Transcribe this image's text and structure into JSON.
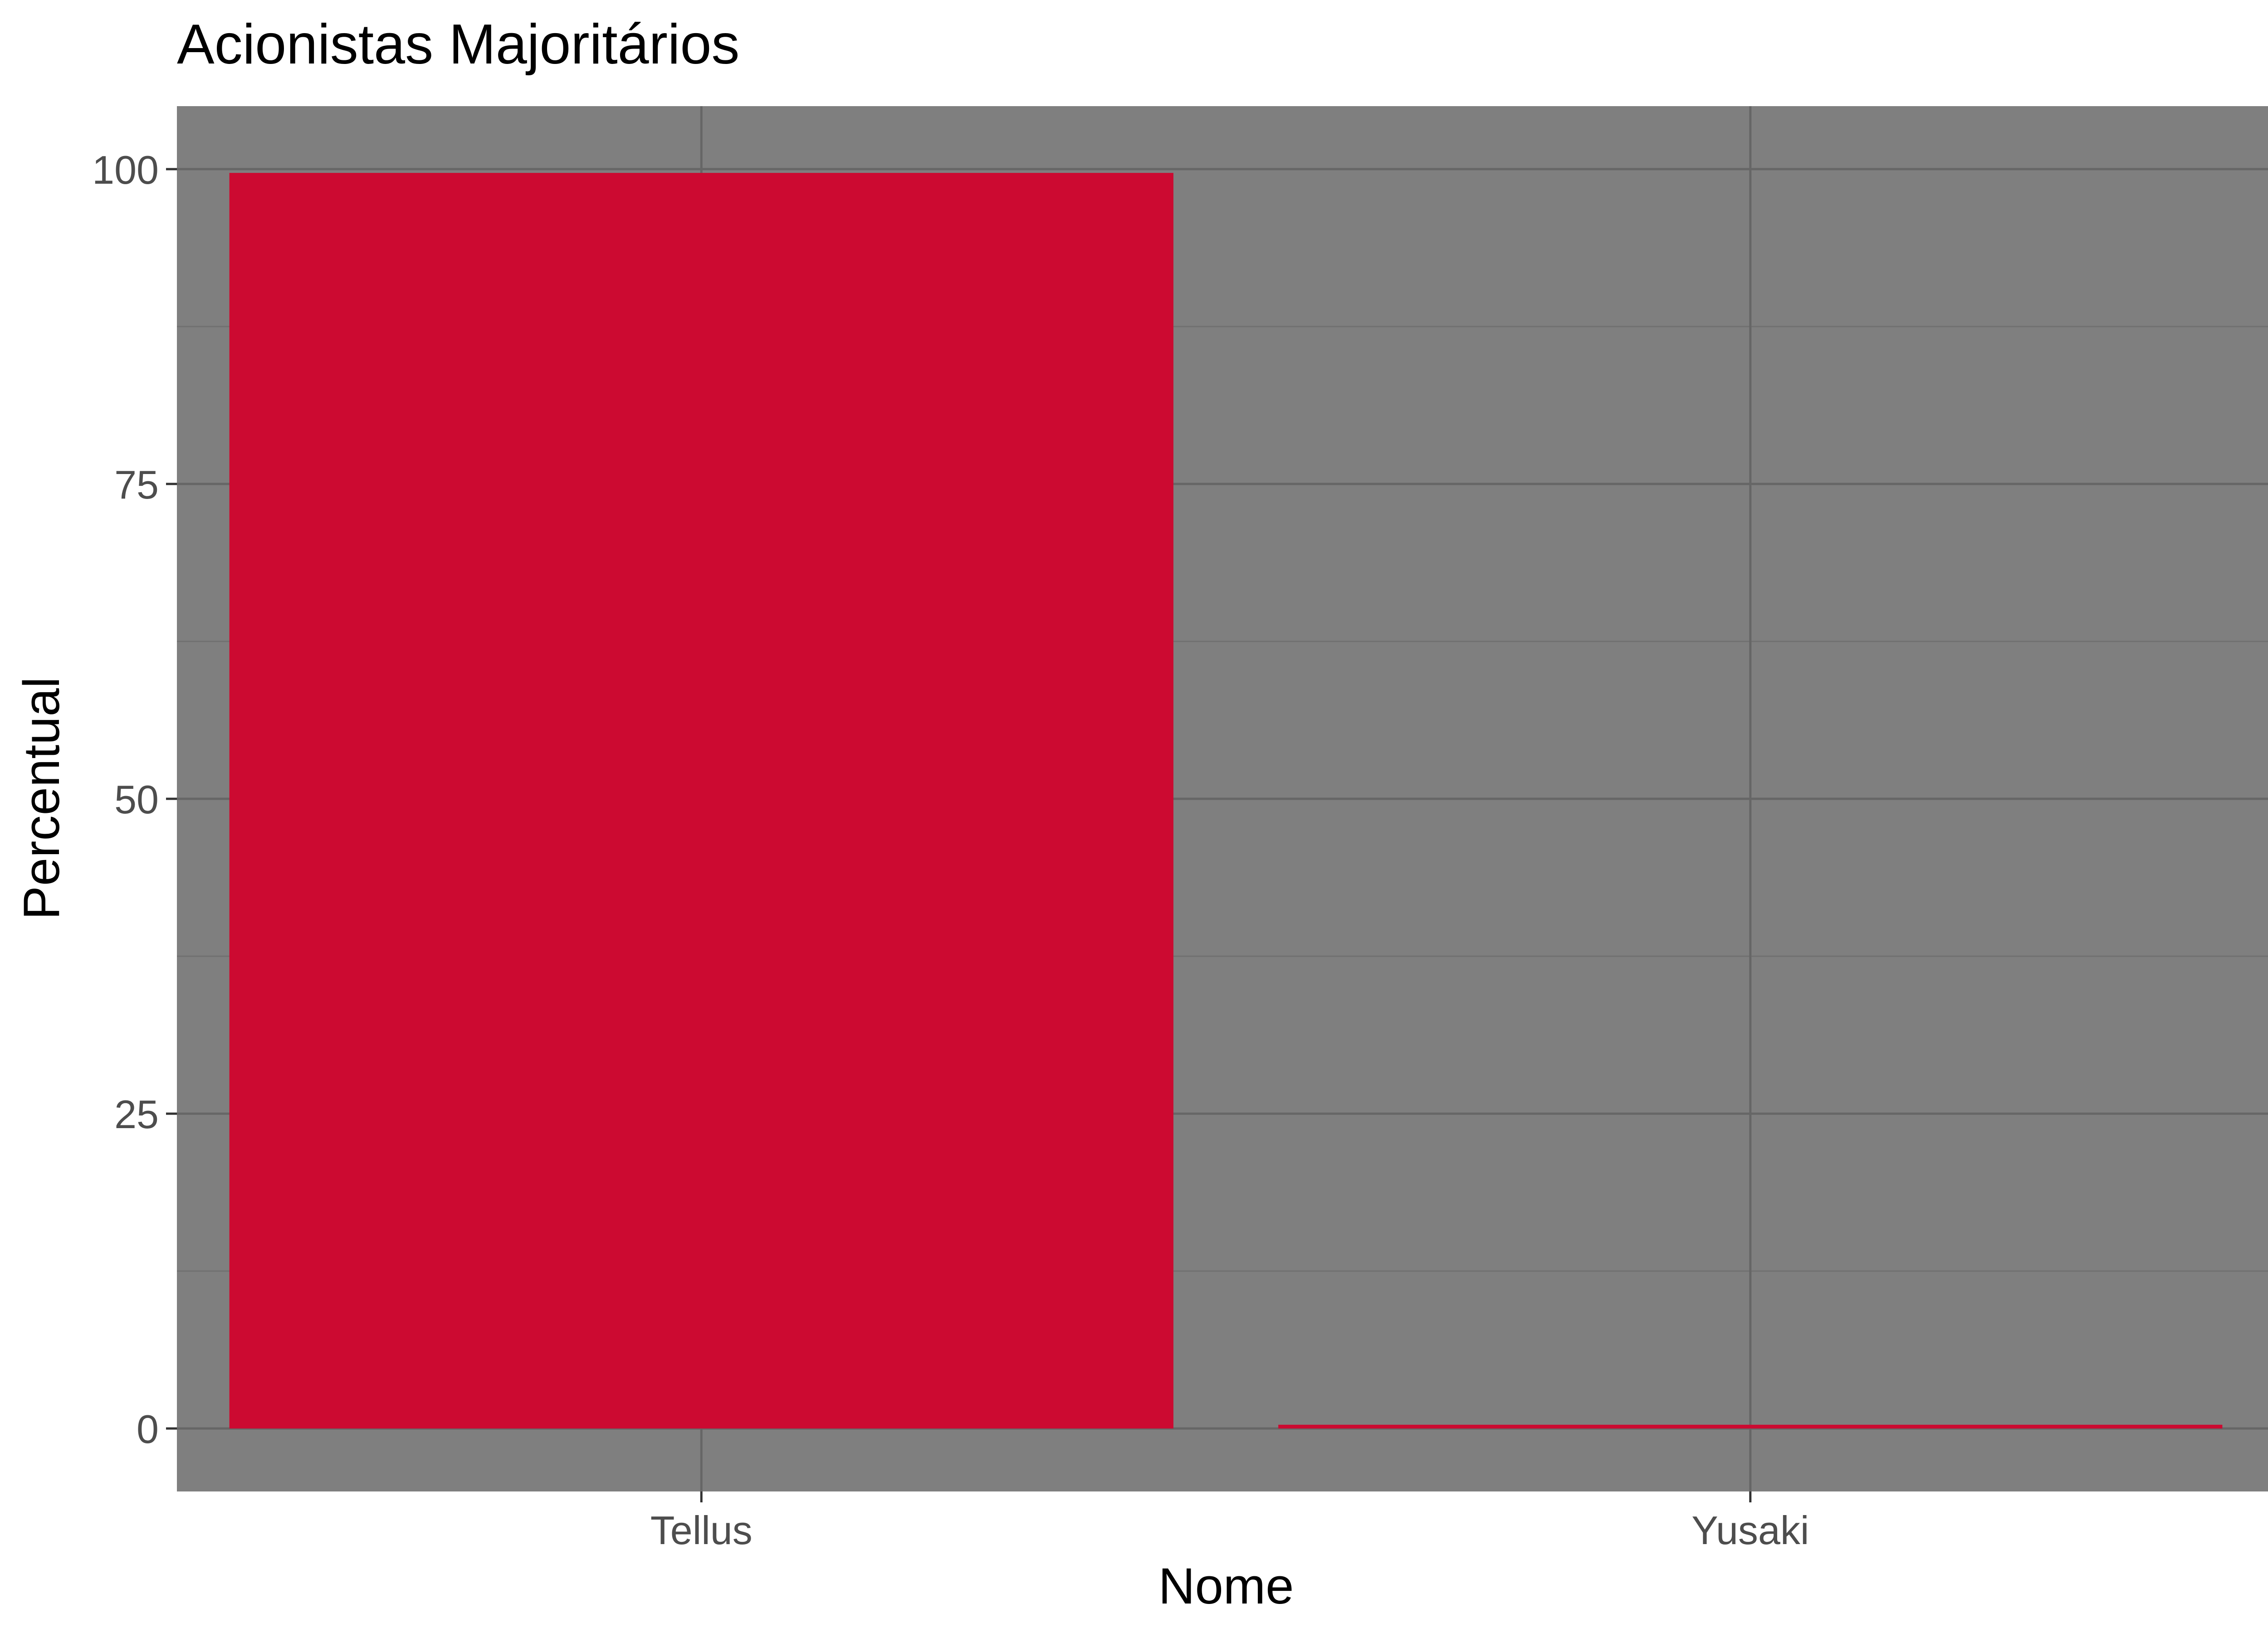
{
  "chart_data": {
    "type": "bar",
    "title": "Acionistas Majoritários",
    "xlabel": "Nome",
    "ylabel": "Percentual",
    "categories": [
      "Tellus",
      "Yusaki"
    ],
    "values": [
      99.7,
      0.3
    ],
    "ylim": [
      -5,
      105
    ],
    "yticks": [
      0,
      25,
      50,
      75,
      100
    ],
    "yminor": [
      12.5,
      37.5,
      62.5,
      87.5
    ],
    "grid": true,
    "legend": "none",
    "colors": {
      "bar": "#cc0a31",
      "panel": "#7f7f7f",
      "grid_major": "#666666",
      "grid_minor": "#707070"
    }
  }
}
